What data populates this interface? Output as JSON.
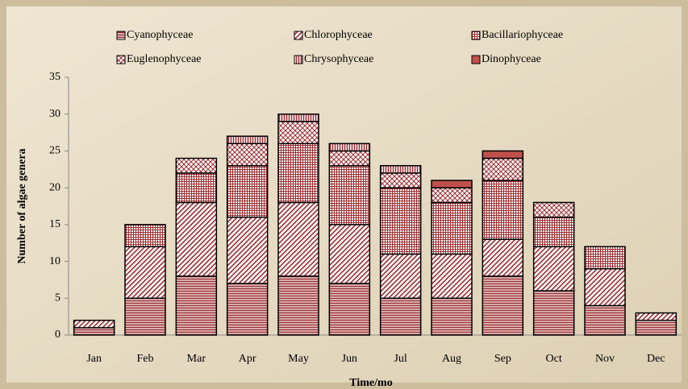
{
  "chart_data": {
    "type": "stacked_bar",
    "xlabel": "Time/mo",
    "ylabel": "Number of algae genera",
    "categories": [
      "Jan",
      "Feb",
      "Mar",
      "Apr",
      "May",
      "Jun",
      "Jul",
      "Aug",
      "Sep",
      "Oct",
      "Nov",
      "Dec"
    ],
    "series": [
      {
        "name": "Cyanophyceae",
        "color": "#9b2d30",
        "pattern": "horizontal",
        "values": [
          1,
          5,
          8,
          7,
          8,
          7,
          5,
          5,
          8,
          6,
          4,
          2
        ]
      },
      {
        "name": "Chlorophyceae",
        "color": "#9b2d30",
        "pattern": "diagonal",
        "values": [
          1,
          7,
          10,
          9,
          10,
          8,
          6,
          6,
          5,
          6,
          5,
          1
        ]
      },
      {
        "name": "Bacillariophyceae",
        "color": "#9b2d30",
        "pattern": "grid",
        "values": [
          0,
          3,
          4,
          7,
          8,
          8,
          9,
          7,
          8,
          4,
          3,
          0
        ]
      },
      {
        "name": "Euglenophyceae",
        "color": "#9b2d30",
        "pattern": "crosshatch",
        "values": [
          0,
          0,
          2,
          3,
          3,
          2,
          2,
          2,
          3,
          2,
          0,
          0
        ]
      },
      {
        "name": "Chrysophyceae",
        "color": "#9b2d30",
        "pattern": "vertical",
        "values": [
          0,
          0,
          0,
          1,
          1,
          1,
          1,
          0,
          0,
          0,
          0,
          0
        ]
      },
      {
        "name": "Dinophyceae",
        "color": "#c0504d",
        "pattern": "solid",
        "values": [
          0,
          0,
          0,
          0,
          0,
          0,
          0,
          1,
          1,
          0,
          0,
          0
        ]
      }
    ],
    "ylim": [
      0,
      35
    ],
    "yticks": [
      0,
      5,
      10,
      15,
      20,
      25,
      30,
      35
    ]
  }
}
